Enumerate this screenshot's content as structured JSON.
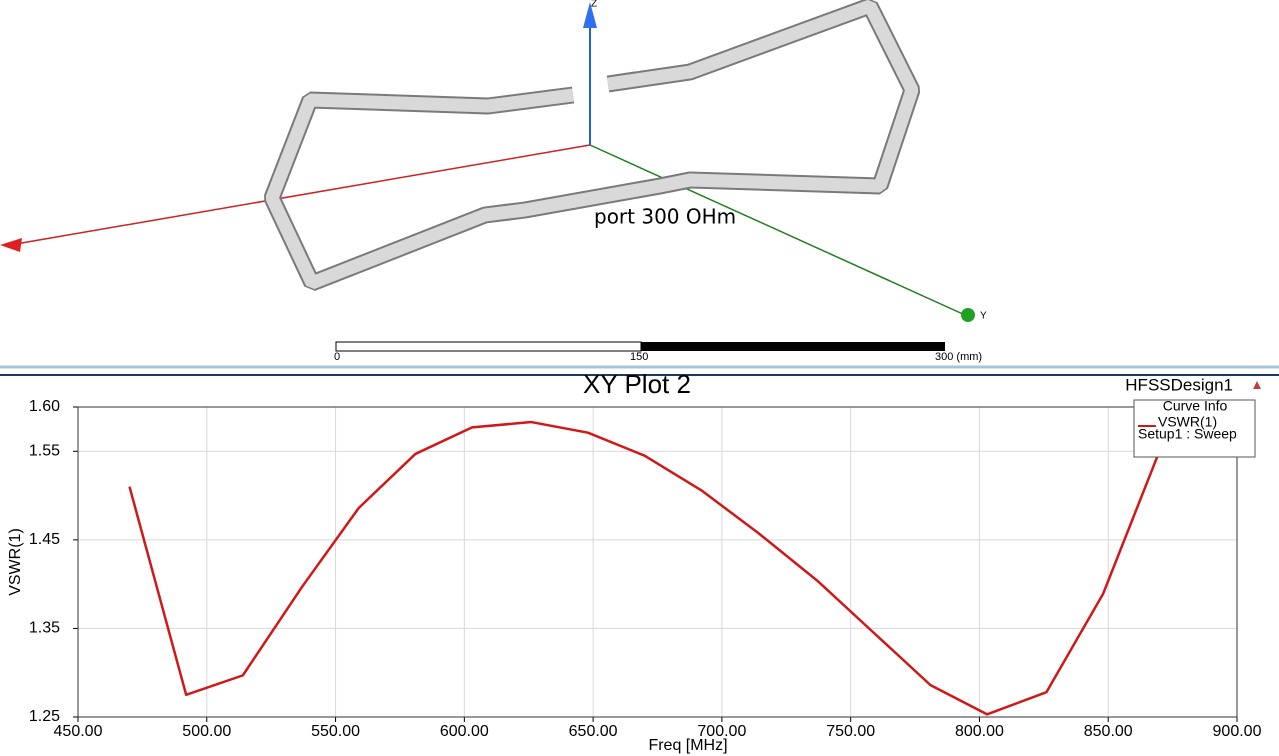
{
  "model_view": {
    "annotation": "port 300 OHm",
    "axis_labels": [
      "Z",
      "Y"
    ],
    "scale_bar": [
      "0",
      "150",
      "300 (mm)"
    ]
  },
  "chart_data": {
    "type": "line",
    "title": "XY Plot 2",
    "design": "HFSSDesign1",
    "x_label": "Freq [MHz]",
    "y_label": "VSWR(1)",
    "legend_title": "Curve Info",
    "legend_position": "upper right",
    "x": [
      470,
      492,
      514,
      537,
      559,
      581,
      603,
      626,
      648,
      670,
      692,
      714,
      737,
      759,
      781,
      803,
      826,
      848,
      870
    ],
    "series": [
      {
        "name": "VSWR(1)",
        "subtitle": "Setup1 : Sweep",
        "color": "#d01818",
        "values": [
          1.51,
          1.275,
          1.297,
          1.397,
          1.486,
          1.547,
          1.577,
          1.583,
          1.571,
          1.545,
          1.506,
          1.458,
          1.404,
          1.345,
          1.286,
          1.253,
          1.278,
          1.389,
          1.551
        ]
      }
    ],
    "xlim": [
      450,
      900
    ],
    "xticks": [
      {
        "value": 450,
        "label": "450.00"
      },
      {
        "value": 500,
        "label": "500.00"
      },
      {
        "value": 550,
        "label": "550.00"
      },
      {
        "value": 600,
        "label": "600.00"
      },
      {
        "value": 650,
        "label": "650.00"
      },
      {
        "value": 700,
        "label": "700.00"
      },
      {
        "value": 750,
        "label": "750.00"
      },
      {
        "value": 800,
        "label": "800.00"
      },
      {
        "value": 850,
        "label": "850.00"
      },
      {
        "value": 900,
        "label": "900.00"
      }
    ],
    "ylim": [
      1.25,
      1.6
    ],
    "yticks": [
      1.25,
      1.35,
      1.45,
      1.55,
      {
        "value": 1.6,
        "label": "1.60"
      }
    ],
    "grid": true
  }
}
